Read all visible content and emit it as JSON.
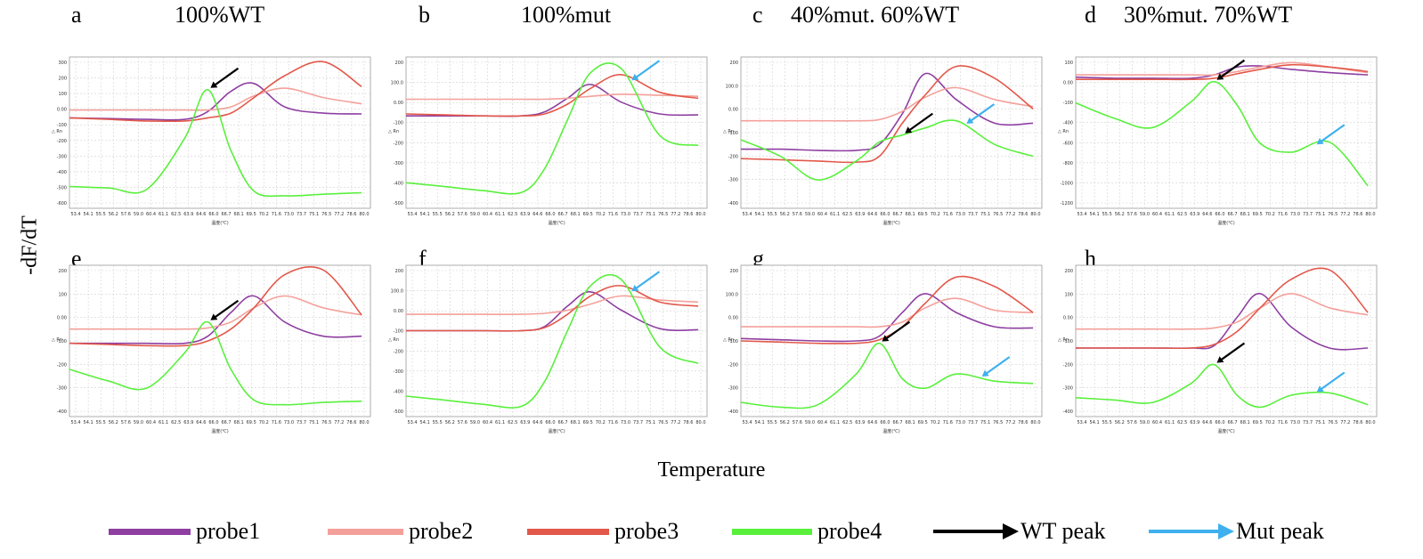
{
  "figure": {
    "ylabel": "-dF/dT",
    "xlabel": "Temperature"
  },
  "legend": {
    "items": [
      {
        "label": "probe1",
        "color": "#8e3fa1",
        "kind": "line"
      },
      {
        "label": "probe2",
        "color": "#f4a09a",
        "kind": "line"
      },
      {
        "label": "probe3",
        "color": "#e2584a",
        "kind": "line"
      },
      {
        "label": "probe4",
        "color": "#59f03c",
        "kind": "line"
      },
      {
        "label": "WT peak",
        "color": "#000000",
        "kind": "arrow"
      },
      {
        "label": "Mut peak",
        "color": "#3fb0ee",
        "kind": "arrow"
      }
    ]
  },
  "axis_common": {
    "x_ticks": [
      "53.4",
      "54.1",
      "55.5",
      "56.2",
      "57.6",
      "59.0",
      "60.4",
      "61.1",
      "62.5",
      "63.9",
      "64.6",
      "66.0",
      "66.7",
      "68.1",
      "69.5",
      "70.2",
      "71.6",
      "73.0",
      "73.7",
      "75.1",
      "76.5",
      "77.2",
      "78.6",
      "80.0"
    ],
    "x_unit_label": "温度(℃)",
    "y_unit_label": "Rn"
  },
  "panels": [
    {
      "letter": "a",
      "title": "100%WT",
      "y_ticks": [
        "300",
        "200",
        "100",
        "0.00",
        "-100",
        "-200",
        "-300",
        "-400",
        "-500",
        "-600"
      ]
    },
    {
      "letter": "b",
      "title": "100%mut",
      "y_ticks": [
        "200",
        "100.0",
        "0.00",
        "-100",
        "-200",
        "-300",
        "-400",
        "-500"
      ]
    },
    {
      "letter": "c",
      "title": "40%mut. 60%WT",
      "y_ticks": [
        "200",
        "100.0",
        "0.00",
        "-100",
        "-200",
        "-300",
        "-400"
      ]
    },
    {
      "letter": "d",
      "title": "30%mut. 70%WT",
      "y_ticks": [
        "100",
        "0.00",
        "-100",
        "-400",
        "-600",
        "-800",
        "-1000",
        "-1200"
      ]
    },
    {
      "letter": "e",
      "title": "",
      "y_ticks": [
        "200",
        "100",
        "0.00",
        "-100",
        "-200",
        "-300",
        "-400"
      ]
    },
    {
      "letter": "f",
      "title": "",
      "y_ticks": [
        "200",
        "100.0",
        "0.00",
        "-100",
        "-200",
        "-300",
        "-400",
        "-500"
      ]
    },
    {
      "letter": "g",
      "title": "",
      "y_ticks": [
        "200",
        "100.0",
        "0.00",
        "-100",
        "-200",
        "-300",
        "-400"
      ]
    },
    {
      "letter": "h",
      "title": "",
      "y_ticks": [
        "200",
        "100",
        "0.00",
        "-100",
        "-200",
        "-300",
        "-400"
      ]
    }
  ],
  "chart_data": [
    {
      "type": "line",
      "panel": "a",
      "title": "100%WT",
      "xlabel": "温度(℃)",
      "ylabel": "Rn",
      "x": [
        53.4,
        57.0,
        60.4,
        63.9,
        66.0,
        68.1,
        70.2,
        73.0,
        76.5,
        80.0
      ],
      "ylim": [
        -650,
        320
      ],
      "series": [
        {
          "name": "probe1",
          "color": "#8e3fa1",
          "values": [
            -70,
            -75,
            -80,
            -80,
            -30,
            100,
            150,
            0,
            -40,
            -45
          ]
        },
        {
          "name": "probe2",
          "color": "#f4a09a",
          "values": [
            -20,
            -20,
            -20,
            -20,
            -20,
            0,
            70,
            120,
            60,
            20
          ]
        },
        {
          "name": "probe3",
          "color": "#e2584a",
          "values": [
            -70,
            -80,
            -90,
            -90,
            -70,
            -40,
            60,
            200,
            290,
            130
          ]
        },
        {
          "name": "probe4",
          "color": "#59f03c",
          "values": [
            -510,
            -520,
            -530,
            -200,
            110,
            -280,
            -540,
            -570,
            -560,
            -550
          ]
        }
      ],
      "annotations": [
        {
          "type": "WT peak",
          "x": 66.0
        }
      ]
    },
    {
      "type": "line",
      "panel": "b",
      "title": "100%mut",
      "xlabel": "温度(℃)",
      "ylabel": "Rn",
      "x": [
        53.4,
        57.0,
        60.4,
        63.9,
        66.0,
        68.1,
        70.2,
        73.0,
        76.5,
        80.0
      ],
      "ylim": [
        -550,
        220
      ],
      "series": [
        {
          "name": "probe1",
          "color": "#8e3fa1",
          "values": [
            -80,
            -80,
            -80,
            -80,
            -60,
            10,
            80,
            -10,
            -70,
            -75
          ]
        },
        {
          "name": "probe2",
          "color": "#f4a09a",
          "values": [
            5,
            5,
            5,
            5,
            5,
            10,
            20,
            30,
            25,
            20
          ]
        },
        {
          "name": "probe3",
          "color": "#e2584a",
          "values": [
            -70,
            -75,
            -80,
            -80,
            -70,
            -20,
            60,
            130,
            40,
            10
          ]
        },
        {
          "name": "probe4",
          "color": "#59f03c",
          "values": [
            -420,
            -440,
            -460,
            -470,
            -350,
            -100,
            140,
            160,
            -180,
            -230
          ]
        }
      ],
      "annotations": [
        {
          "type": "Mut peak",
          "x": 73.7
        }
      ]
    },
    {
      "type": "line",
      "panel": "c",
      "title": "40%mut. 60%WT",
      "xlabel": "温度(℃)",
      "ylabel": "Rn",
      "x": [
        53.4,
        57.0,
        60.4,
        63.9,
        66.0,
        68.1,
        70.2,
        73.0,
        76.5,
        80.0
      ],
      "ylim": [
        -420,
        220
      ],
      "series": [
        {
          "name": "probe1",
          "color": "#8e3fa1",
          "values": [
            -170,
            -170,
            -175,
            -175,
            -150,
            -20,
            150,
            40,
            -60,
            -60
          ]
        },
        {
          "name": "probe2",
          "color": "#f4a09a",
          "values": [
            -50,
            -50,
            -50,
            -50,
            -45,
            -10,
            50,
            90,
            40,
            10
          ]
        },
        {
          "name": "probe3",
          "color": "#e2584a",
          "values": [
            -210,
            -215,
            -220,
            -225,
            -200,
            -60,
            60,
            180,
            130,
            0
          ]
        },
        {
          "name": "probe4",
          "color": "#59f03c",
          "values": [
            -130,
            -200,
            -300,
            -220,
            -140,
            -110,
            -80,
            -50,
            -150,
            -200
          ]
        }
      ],
      "annotations": [
        {
          "type": "WT peak",
          "x": 68.1
        },
        {
          "type": "Mut peak",
          "x": 73.7
        }
      ]
    },
    {
      "type": "line",
      "panel": "d",
      "title": "30%mut. 70%WT",
      "xlabel": "温度(℃)",
      "ylabel": "Rn",
      "x": [
        53.4,
        57.0,
        60.4,
        63.9,
        66.0,
        68.1,
        70.2,
        73.0,
        76.5,
        80.0
      ],
      "ylim": [
        -1200,
        150
      ],
      "series": [
        {
          "name": "probe1",
          "color": "#8e3fa1",
          "values": [
            -30,
            -40,
            -40,
            -40,
            -10,
            60,
            70,
            40,
            10,
            -10
          ]
        },
        {
          "name": "probe2",
          "color": "#f4a09a",
          "values": [
            -10,
            -10,
            -10,
            -10,
            -10,
            20,
            60,
            100,
            60,
            10
          ]
        },
        {
          "name": "probe3",
          "color": "#e2584a",
          "values": [
            -50,
            -50,
            -50,
            -50,
            -40,
            0,
            40,
            80,
            60,
            20
          ]
        },
        {
          "name": "probe4",
          "color": "#59f03c",
          "values": [
            -260,
            -400,
            -480,
            -250,
            -70,
            -280,
            -620,
            -700,
            -610,
            -1000
          ]
        }
      ],
      "annotations": [
        {
          "type": "WT peak",
          "x": 66.0
        },
        {
          "type": "Mut peak",
          "x": 75.1
        }
      ]
    },
    {
      "type": "line",
      "panel": "e",
      "xlabel": "温度(℃)",
      "ylabel": "Rn",
      "x": [
        53.4,
        57.0,
        60.4,
        63.9,
        66.0,
        68.1,
        70.2,
        73.0,
        76.5,
        80.0
      ],
      "ylim": [
        -420,
        220
      ],
      "series": [
        {
          "name": "probe1",
          "color": "#8e3fa1",
          "values": [
            -110,
            -110,
            -110,
            -110,
            -80,
            20,
            90,
            -20,
            -80,
            -80
          ]
        },
        {
          "name": "probe2",
          "color": "#f4a09a",
          "values": [
            -50,
            -50,
            -50,
            -50,
            -45,
            -20,
            40,
            90,
            40,
            10
          ]
        },
        {
          "name": "probe3",
          "color": "#e2584a",
          "values": [
            -110,
            -115,
            -120,
            -120,
            -100,
            -50,
            40,
            180,
            200,
            10
          ]
        },
        {
          "name": "probe4",
          "color": "#59f03c",
          "values": [
            -220,
            -270,
            -300,
            -150,
            -20,
            -220,
            -350,
            -370,
            -360,
            -355
          ]
        }
      ],
      "annotations": [
        {
          "type": "WT peak",
          "x": 66.0
        }
      ]
    },
    {
      "type": "line",
      "panel": "f",
      "xlabel": "温度(℃)",
      "ylabel": "Rn",
      "x": [
        53.4,
        57.0,
        60.4,
        63.9,
        66.0,
        68.1,
        70.2,
        73.0,
        76.5,
        80.0
      ],
      "ylim": [
        -520,
        220
      ],
      "series": [
        {
          "name": "probe1",
          "color": "#8e3fa1",
          "values": [
            -100,
            -100,
            -100,
            -100,
            -80,
            20,
            90,
            0,
            -90,
            -95
          ]
        },
        {
          "name": "probe2",
          "color": "#f4a09a",
          "values": [
            -20,
            -20,
            -20,
            -20,
            -15,
            0,
            30,
            70,
            50,
            40
          ]
        },
        {
          "name": "probe3",
          "color": "#e2584a",
          "values": [
            -100,
            -100,
            -100,
            -100,
            -85,
            -20,
            70,
            120,
            40,
            20
          ]
        },
        {
          "name": "probe4",
          "color": "#59f03c",
          "values": [
            -420,
            -440,
            -460,
            -470,
            -350,
            -100,
            120,
            150,
            -180,
            -260
          ]
        }
      ],
      "annotations": [
        {
          "type": "Mut peak",
          "x": 73.7
        }
      ]
    },
    {
      "type": "line",
      "panel": "g",
      "xlabel": "温度(℃)",
      "ylabel": "Rn",
      "x": [
        53.4,
        57.0,
        60.4,
        63.9,
        66.0,
        68.1,
        70.2,
        73.0,
        76.5,
        80.0
      ],
      "ylim": [
        -420,
        220
      ],
      "series": [
        {
          "name": "probe1",
          "color": "#8e3fa1",
          "values": [
            -90,
            -95,
            -100,
            -100,
            -80,
            20,
            100,
            20,
            -40,
            -45
          ]
        },
        {
          "name": "probe2",
          "color": "#f4a09a",
          "values": [
            -40,
            -40,
            -40,
            -40,
            -40,
            -20,
            40,
            80,
            30,
            20
          ]
        },
        {
          "name": "probe3",
          "color": "#e2584a",
          "values": [
            -100,
            -105,
            -110,
            -110,
            -95,
            -40,
            60,
            170,
            130,
            20
          ]
        },
        {
          "name": "probe4",
          "color": "#59f03c",
          "values": [
            -360,
            -380,
            -370,
            -240,
            -110,
            -260,
            -300,
            -240,
            -270,
            -280
          ]
        }
      ],
      "annotations": [
        {
          "type": "WT peak",
          "x": 66.0
        },
        {
          "type": "Mut peak",
          "x": 75.1
        }
      ]
    },
    {
      "type": "line",
      "panel": "h",
      "xlabel": "温度(℃)",
      "ylabel": "Rn",
      "x": [
        53.4,
        57.0,
        60.4,
        63.9,
        66.0,
        68.1,
        70.2,
        73.0,
        76.5,
        80.0
      ],
      "ylim": [
        -420,
        220
      ],
      "series": [
        {
          "name": "probe1",
          "color": "#8e3fa1",
          "values": [
            -130,
            -130,
            -130,
            -130,
            -120,
            0,
            100,
            -40,
            -130,
            -130
          ]
        },
        {
          "name": "probe2",
          "color": "#f4a09a",
          "values": [
            -50,
            -50,
            -50,
            -50,
            -45,
            -20,
            40,
            100,
            40,
            10
          ]
        },
        {
          "name": "probe3",
          "color": "#e2584a",
          "values": [
            -130,
            -130,
            -130,
            -130,
            -115,
            -60,
            40,
            160,
            200,
            20
          ]
        },
        {
          "name": "probe4",
          "color": "#59f03c",
          "values": [
            -340,
            -350,
            -360,
            -280,
            -200,
            -330,
            -380,
            -330,
            -320,
            -370
          ]
        }
      ],
      "annotations": [
        {
          "type": "WT peak",
          "x": 66.0
        },
        {
          "type": "Mut peak",
          "x": 75.1
        }
      ]
    }
  ]
}
